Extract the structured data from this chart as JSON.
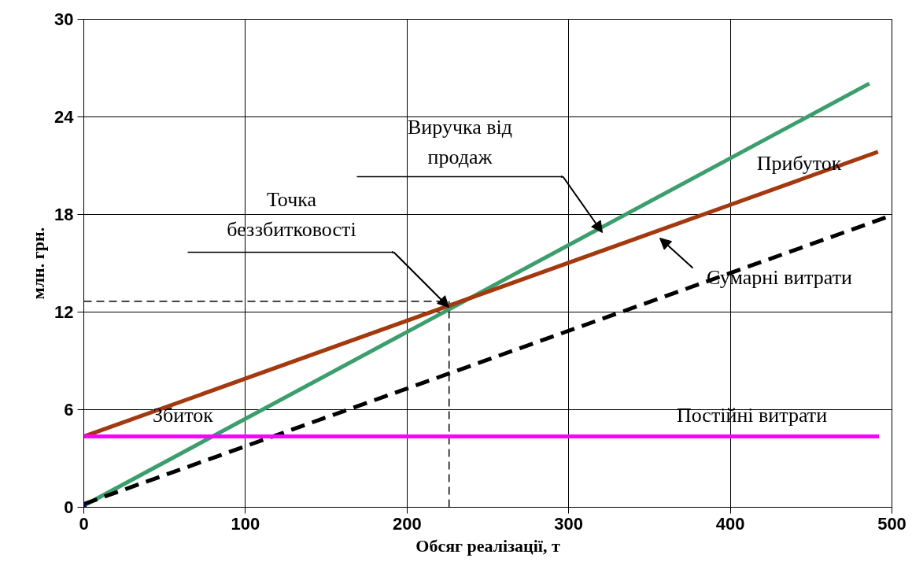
{
  "chart_data": {
    "type": "line",
    "xlabel": "Обсяг реалізації, т",
    "ylabel": "млн. грн.",
    "xlim": [
      0,
      500
    ],
    "ylim": [
      0,
      30
    ],
    "xticks": [
      0,
      100,
      200,
      300,
      400,
      500
    ],
    "yticks": [
      0,
      6,
      12,
      18,
      24,
      30
    ],
    "grid": true,
    "marker": "none",
    "series": [
      {
        "color": "#3c9e6c",
        "x": [
          0,
          486
        ],
        "values": [
          0.1,
          26.05
        ],
        "line_style": "solid"
      },
      {
        "color": "#a3390e",
        "x": [
          0,
          491.4
        ],
        "values": [
          4.35,
          21.85
        ],
        "line_style": "solid"
      },
      {
        "color": "#000000",
        "x": [
          0,
          500
        ],
        "values": [
          0.2,
          17.95
        ],
        "line_style": "dashed"
      },
      {
        "color": "#ff00ff",
        "x": [
          0,
          492
        ],
        "values": [
          4.35,
          4.35
        ],
        "line_style": "solid"
      },
      {
        "type": "scatter",
        "color": "#000080",
        "x": [
          0
        ],
        "values": [
          0
        ],
        "marker": "diamond"
      }
    ],
    "ref_lines": [
      {
        "axis": "y",
        "value": 12.67,
        "line_style": "dashed",
        "color": "#000000"
      },
      {
        "axis": "x",
        "value": 226,
        "line_style": "dashed",
        "color": "#000000"
      }
    ],
    "annotations": [
      "Виручка від\nпродаж",
      "Точка\nбеззбитковості",
      "Сумарні витрати",
      "Прибуток",
      "Збиток",
      "Постійні витрати"
    ]
  }
}
